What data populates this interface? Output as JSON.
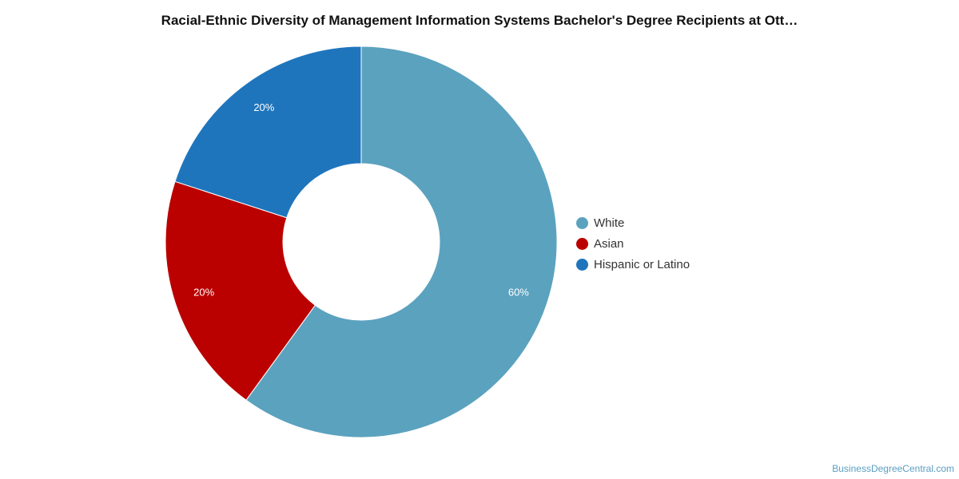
{
  "chart_data": {
    "type": "pie",
    "title": "Racial-Ethnic Diversity of Management Information Systems Bachelor's Degree Recipients at Ott…",
    "donut": true,
    "legend_position": "right",
    "slices": [
      {
        "name": "White",
        "value": 60,
        "label": "60%",
        "color": "#5ba2bf"
      },
      {
        "name": "Asian",
        "value": 20,
        "label": "20%",
        "color": "#bb0000"
      },
      {
        "name": "Hispanic or Latino",
        "value": 20,
        "label": "20%",
        "color": "#1f75bc"
      }
    ]
  },
  "watermark": "BusinessDegreeCentral.com"
}
